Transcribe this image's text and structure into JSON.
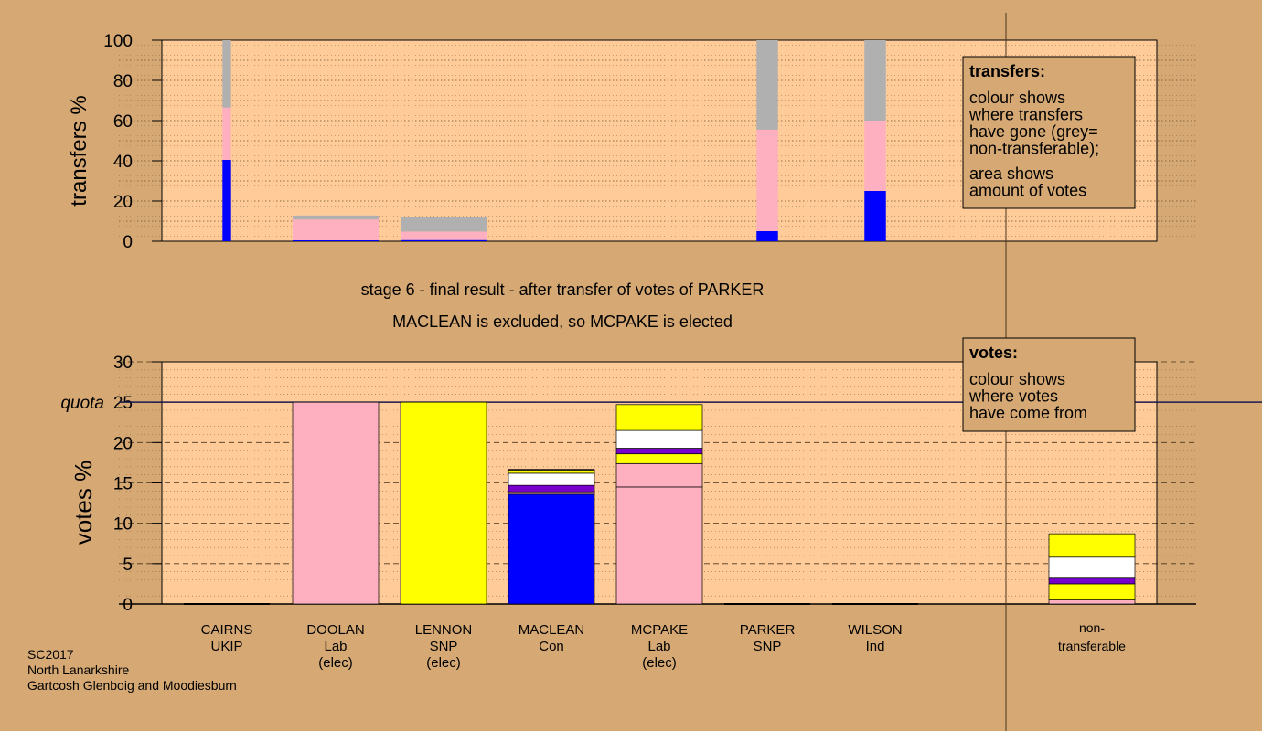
{
  "stage_title": "stage 6 - final result - after transfer of votes of PARKER",
  "stage_subtitle": "MACLEAN is excluded, so MCPAKE is elected",
  "footer": [
    "SC2017",
    "North Lanarkshire",
    "Gartcosh Glenboig and Moodiesburn"
  ],
  "colors": {
    "background": "#d5a874",
    "plot_area": "#ffcc99",
    "legend_box": "#d5a874",
    "Con": "#0000ff",
    "Lab": "#ffb0c0",
    "SNP": "#ffff00",
    "Ind": "#ffffff",
    "UKIP": "#7700cc",
    "nontransferable": "#b0b0b0",
    "quota_line": "#1a1a4d"
  },
  "chart_data": [
    {
      "type": "bar",
      "ylabel": "transfers %",
      "ylim": [
        0,
        100
      ],
      "yticks": [
        0,
        20,
        40,
        60,
        80,
        100
      ],
      "minor_gridlines": true,
      "legend": {
        "title": "transfers:",
        "text1": [
          "colour shows",
          "where transfers",
          "have gone (grey=",
          "non-transferable);"
        ],
        "text2": [
          "area shows",
          "amount of votes"
        ],
        "placement": "top-right"
      },
      "columns": [
        {
          "candidate": "CAIRNS",
          "width_share": 0.1,
          "segments": [
            {
              "party": "Con",
              "value": 40.5
            },
            {
              "party": "Lab",
              "value": 26
            },
            {
              "party": "nontransferable",
              "value": 33.5
            }
          ]
        },
        {
          "candidate": "DOOLAN",
          "width_share": 1.0,
          "segments": [
            {
              "party": "Con",
              "value": 0.5
            },
            {
              "party": "Lab",
              "value": 10.3
            },
            {
              "party": "nontransferable",
              "value": 2.0
            }
          ]
        },
        {
          "candidate": "LENNON",
          "width_share": 1.0,
          "segments": [
            {
              "party": "Con",
              "value": 0.6
            },
            {
              "party": "Lab",
              "value": 4.2
            },
            {
              "party": "nontransferable",
              "value": 7.2
            }
          ]
        },
        {
          "candidate": "MACLEAN",
          "width_share": 0,
          "segments": []
        },
        {
          "candidate": "MCPAKE",
          "width_share": 0,
          "segments": []
        },
        {
          "candidate": "PARKER",
          "width_share": 0.25,
          "segments": [
            {
              "party": "Con",
              "value": 5
            },
            {
              "party": "Lab",
              "value": 50.5
            },
            {
              "party": "nontransferable",
              "value": 44.5
            }
          ]
        },
        {
          "candidate": "WILSON",
          "width_share": 0.25,
          "segments": [
            {
              "party": "Con",
              "value": 25
            },
            {
              "party": "Lab",
              "value": 35
            },
            {
              "party": "nontransferable",
              "value": 40
            }
          ]
        }
      ]
    },
    {
      "type": "bar",
      "stacked": true,
      "ylabel": "votes %",
      "ylim": [
        0,
        30
      ],
      "yticks": [
        0,
        5,
        10,
        15,
        20,
        25,
        30
      ],
      "quota": 25,
      "quota_label": "quota",
      "legend": {
        "title": "votes:",
        "text1": [
          "colour shows",
          "where votes",
          "have come from"
        ],
        "placement": "top-right"
      },
      "candidates": [
        {
          "name": "CAIRNS",
          "party": "UKIP",
          "status": "",
          "segments": []
        },
        {
          "name": "DOOLAN",
          "party": "Lab",
          "status": "(elec)",
          "segments": [
            {
              "party": "Lab",
              "value": 25
            }
          ]
        },
        {
          "name": "LENNON",
          "party": "SNP",
          "status": "(elec)",
          "segments": [
            {
              "party": "SNP",
              "value": 25
            }
          ]
        },
        {
          "name": "MACLEAN",
          "party": "Con",
          "status": "",
          "segments": [
            {
              "party": "Con",
              "value": 13.6
            },
            {
              "party": "Lab",
              "value": 0.3
            },
            {
              "party": "UKIP",
              "value": 0.8
            },
            {
              "party": "Ind",
              "value": 1.5
            },
            {
              "party": "SNP",
              "value": 0.4
            },
            {
              "party": "Lab",
              "value": 0.1
            }
          ]
        },
        {
          "name": "MCPAKE",
          "party": "Lab",
          "status": "(elec)",
          "segments": [
            {
              "party": "Lab",
              "value": 14.5
            },
            {
              "party": "Lab",
              "value": 2.9
            },
            {
              "party": "SNP",
              "value": 1.2
            },
            {
              "party": "UKIP",
              "value": 0.7
            },
            {
              "party": "Ind",
              "value": 2.2
            },
            {
              "party": "SNP",
              "value": 3.2
            }
          ]
        },
        {
          "name": "PARKER",
          "party": "SNP",
          "status": "",
          "segments": []
        },
        {
          "name": "WILSON",
          "party": "Ind",
          "status": "",
          "segments": []
        }
      ],
      "nontransferable": {
        "label1": "non-",
        "label2": "transferable",
        "segments": [
          {
            "party": "Lab",
            "value": 0.5
          },
          {
            "party": "SNP",
            "value": 2.0
          },
          {
            "party": "UKIP",
            "value": 0.7
          },
          {
            "party": "Ind",
            "value": 2.6
          },
          {
            "party": "SNP",
            "value": 2.9
          }
        ]
      }
    }
  ]
}
